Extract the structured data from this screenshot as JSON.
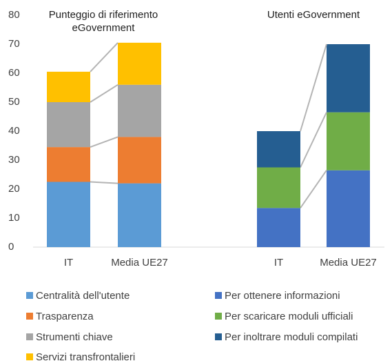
{
  "chart_data": {
    "type": "bar",
    "stacked": true,
    "ylim": [
      0,
      80
    ],
    "yticks": [
      0,
      10,
      20,
      30,
      40,
      50,
      60,
      70,
      80
    ],
    "groups": [
      {
        "title": "Punteggio di riferimento eGovernment",
        "categories": [
          "IT",
          "Media UE27"
        ],
        "series": [
          {
            "name": "Centralità dell'utente",
            "color": "#5b9bd5",
            "values": [
              22.5,
              22
            ]
          },
          {
            "name": "Trasparenza",
            "color": "#ed7d31",
            "values": [
              12,
              16
            ]
          },
          {
            "name": "Strumenti chiave",
            "color": "#a5a5a5",
            "values": [
              15.5,
              18
            ]
          },
          {
            "name": "Servizi transfrontalieri",
            "color": "#ffc000",
            "values": [
              10.5,
              14.5
            ]
          }
        ]
      },
      {
        "title": "Utenti  eGovernment",
        "categories": [
          "IT",
          "Media UE27"
        ],
        "series": [
          {
            "name": "Per ottenere informazioni",
            "color": "#4472c4",
            "values": [
              13.5,
              26.5
            ]
          },
          {
            "name": "Per scaricare moduli ufficiali",
            "color": "#70ad47",
            "values": [
              14,
              20
            ]
          },
          {
            "name": "Per inoltrare moduli compilati",
            "color": "#255e91",
            "values": [
              12.5,
              23.5
            ]
          }
        ]
      }
    ]
  }
}
